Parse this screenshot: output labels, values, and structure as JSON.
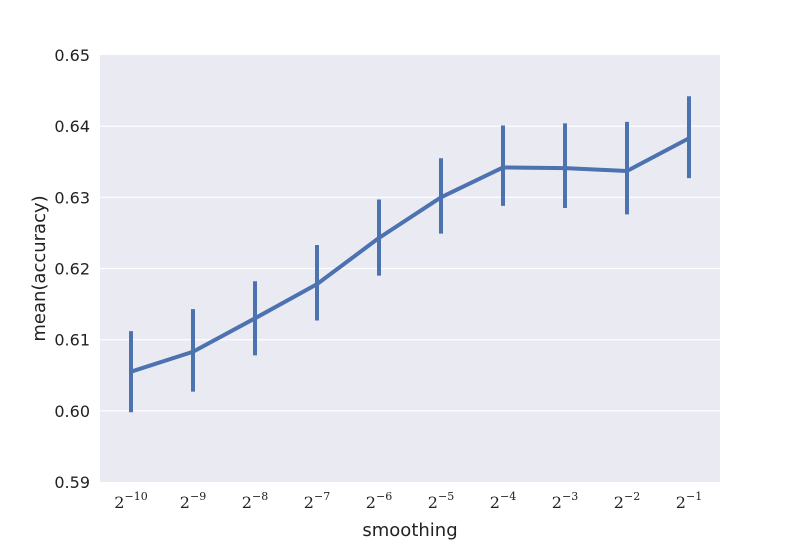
{
  "chart_data": {
    "type": "line",
    "title": "",
    "xlabel": "smoothing",
    "ylabel": "mean(accuracy)",
    "ylim": [
      0.59,
      0.65
    ],
    "yticks": [
      "0.59",
      "0.60",
      "0.61",
      "0.62",
      "0.63",
      "0.64",
      "0.65"
    ],
    "xscale": "log2",
    "grid": true,
    "legend": "none",
    "categories": [
      {
        "base": "2",
        "exp": "−10"
      },
      {
        "base": "2",
        "exp": "−9"
      },
      {
        "base": "2",
        "exp": "−8"
      },
      {
        "base": "2",
        "exp": "−7"
      },
      {
        "base": "2",
        "exp": "−6"
      },
      {
        "base": "2",
        "exp": "−5"
      },
      {
        "base": "2",
        "exp": "−4"
      },
      {
        "base": "2",
        "exp": "−3"
      },
      {
        "base": "2",
        "exp": "−2"
      },
      {
        "base": "2",
        "exp": "−1"
      }
    ],
    "series": [
      {
        "color": "#4c72b0",
        "values": [
          0.6055,
          0.6083,
          0.613,
          0.6178,
          0.6243,
          0.63,
          0.6342,
          0.6341,
          0.6337,
          0.6383
        ],
        "err_low": [
          0.5998,
          0.6027,
          0.6078,
          0.6127,
          0.619,
          0.6249,
          0.6288,
          0.6285,
          0.6276,
          0.6327
        ],
        "err_high": [
          0.6112,
          0.6143,
          0.6182,
          0.6233,
          0.6297,
          0.6355,
          0.6401,
          0.6404,
          0.6406,
          0.6442
        ]
      }
    ],
    "colors": {
      "plot_background": "#eaeaf2",
      "grid": "#ffffff",
      "line": "#4c72b0"
    }
  }
}
